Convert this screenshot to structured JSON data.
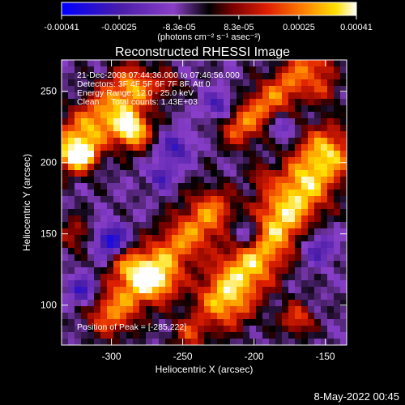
{
  "chart_data": {
    "type": "heatmap",
    "title": "Reconstructed RHESSI Image",
    "xlabel": "Heliocentric X (arcsec)",
    "ylabel": "Heliocentric Y (arcsec)",
    "xlim": [
      -335,
      -135
    ],
    "ylim": [
      72,
      272
    ],
    "x_ticks": [
      -300,
      -250,
      -200,
      -150
    ],
    "y_ticks": [
      100,
      150,
      200,
      250
    ],
    "colorbar": {
      "range": [
        -0.00041,
        0.00041
      ],
      "tick_values": [
        -0.00041,
        -0.00025,
        -8.3e-05,
        8.3e-05,
        0.00025,
        0.00041
      ],
      "tick_labels": [
        "-0.00041",
        "-0.00025",
        "-8.3e-05",
        "8.3e-05",
        "0.00025",
        "0.00041"
      ],
      "units_label": "(photons cm⁻² s⁻¹ asec⁻²)",
      "colors": [
        "#0000ff",
        "#4a1da8",
        "#8a3fc8",
        "#000000",
        "#7a0000",
        "#e02000",
        "#ff8000",
        "#ffe000",
        "#ffffff"
      ]
    },
    "info_lines": [
      "21-Dec-2003 07:44:36.000 to 07:46:56.000",
      "Detectors: 3F 4F 5F 6F 7F 8F, Att 0",
      "Energy Range: 12.0 - 25.0 keV",
      "Clean     Total counts: 1.43E+03"
    ],
    "peak_label": "Position of Peak = [-285,222]",
    "peak": [
      -285,
      222
    ],
    "ridges": [
      {
        "x0": -220,
        "y0": 105,
        "x1": -150,
        "y1": 205,
        "width": 14,
        "amp": 1.0
      },
      {
        "x0": -300,
        "y0": 95,
        "x1": -230,
        "y1": 165,
        "width": 12,
        "amp": 0.75
      },
      {
        "x0": -330,
        "y0": 210,
        "x1": -285,
        "y1": 252,
        "width": 12,
        "amp": 0.85
      },
      {
        "x0": -210,
        "y0": 225,
        "x1": -160,
        "y1": 268,
        "width": 10,
        "amp": 0.7
      },
      {
        "x0": -290,
        "y0": 130,
        "x1": -265,
        "y1": 115,
        "width": 9,
        "amp": 0.55
      }
    ],
    "blobs": [
      {
        "x": -285,
        "y": 222,
        "sigma": 9,
        "amp": 1.0
      },
      {
        "x": -320,
        "y": 205,
        "sigma": 7,
        "amp": 0.8
      },
      {
        "x": -170,
        "y": 90,
        "sigma": 8,
        "amp": 0.6
      },
      {
        "x": -245,
        "y": 80,
        "sigma": 9,
        "amp": 0.5
      },
      {
        "x": -325,
        "y": 150,
        "sigma": 8,
        "amp": 0.45
      },
      {
        "x": -150,
        "y": 250,
        "sigma": 7,
        "amp": 0.4
      },
      {
        "x": -195,
        "y": 190,
        "sigma": 6,
        "amp": 0.35
      },
      {
        "x": -260,
        "y": 255,
        "sigma": 6,
        "amp": 0.35
      }
    ],
    "negative_blobs": [
      {
        "x": -300,
        "y": 145,
        "sigma": 8,
        "amp": 0.9
      },
      {
        "x": -255,
        "y": 210,
        "sigma": 8,
        "amp": 0.6
      },
      {
        "x": -205,
        "y": 150,
        "sigma": 9,
        "amp": 0.7
      },
      {
        "x": -225,
        "y": 240,
        "sigma": 7,
        "amp": 0.6
      },
      {
        "x": -320,
        "y": 110,
        "sigma": 7,
        "amp": 0.7
      },
      {
        "x": -155,
        "y": 140,
        "sigma": 8,
        "amp": 0.55
      },
      {
        "x": -265,
        "y": 190,
        "sigma": 6,
        "amp": 0.6
      },
      {
        "x": -180,
        "y": 225,
        "sigma": 6,
        "amp": 0.5
      }
    ]
  },
  "footer": {
    "timestamp": "8-May-2022 00:45"
  }
}
